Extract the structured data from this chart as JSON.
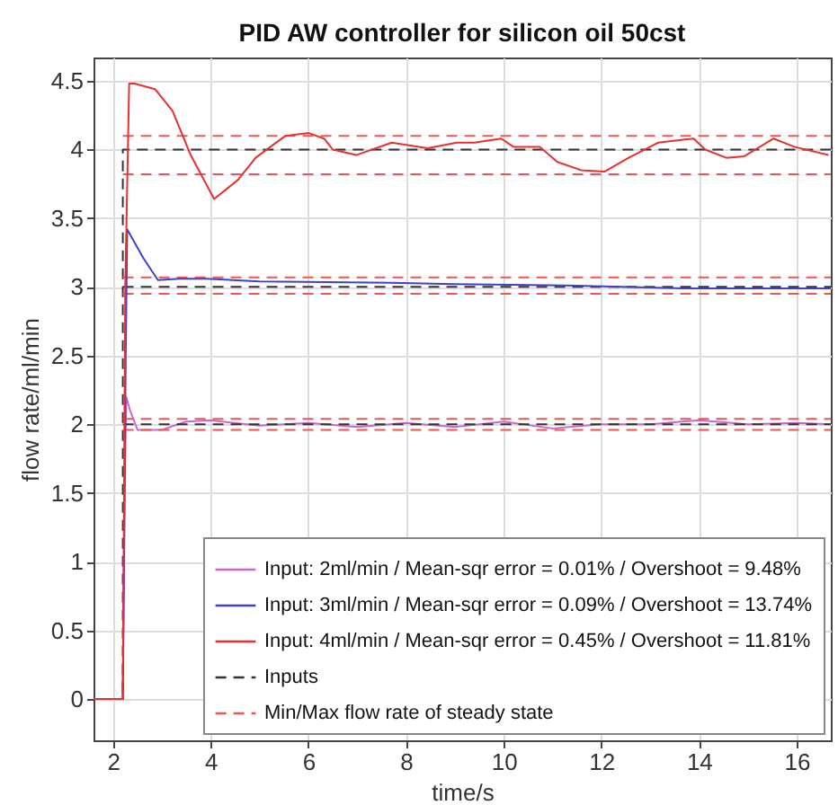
{
  "chart_data": {
    "type": "line",
    "title": "PID AW controller for silicon oil 50cst",
    "xlabel": "time/s",
    "ylabel": "flow rate/ml/min",
    "xlim": [
      1.6,
      16.7
    ],
    "ylim": [
      -0.3,
      4.67
    ],
    "xticks": [
      2,
      4,
      6,
      8,
      10,
      12,
      14,
      16
    ],
    "yticks": [
      0,
      0.5,
      1,
      1.5,
      2,
      2.5,
      3,
      3.5,
      4,
      4.5
    ],
    "grid": true,
    "legend": "bottom right",
    "marker": "none",
    "series": [
      {
        "name": "Input: 2ml/min / Mean-sqr error = 0.01% / Overshoot = 9.48%",
        "color": "#cc66cc",
        "line_style": "solid",
        "x": [
          1.6,
          2.2,
          2.24,
          2.27,
          2.35,
          2.5,
          3,
          3.5,
          4,
          5,
          6,
          7,
          8,
          9,
          10,
          11,
          12,
          13,
          14,
          15,
          16,
          16.7
        ],
        "values": [
          0,
          0,
          1.5,
          2.2,
          2.1,
          1.96,
          1.96,
          2.02,
          2.03,
          1.99,
          2.01,
          1.98,
          2.01,
          1.98,
          2.02,
          1.97,
          2,
          2,
          2.03,
          2,
          2.01,
          2
        ]
      },
      {
        "name": "Input: 3ml/min / Mean-sqr error = 0.09% / Overshoot = 13.74%",
        "color": "#4040c8",
        "line_style": "solid",
        "x": [
          1.6,
          2.2,
          2.26,
          2.29,
          2.62,
          2.92,
          3.35,
          3.9,
          5,
          7.7,
          9,
          11.3,
          13.7,
          15,
          16.7
        ],
        "values": [
          0,
          0,
          2.5,
          3.42,
          3.21,
          3.05,
          3.06,
          3.06,
          3.04,
          3.03,
          3.02,
          3.01,
          2.99,
          2.99,
          2.99
        ]
      },
      {
        "name": "Input: 4ml/min / Mean-sqr error = 0.45% / Overshoot = 11.81%",
        "color": "#e83030",
        "line_style": "solid",
        "x": [
          1.6,
          2.2,
          2.25,
          2.33,
          2.44,
          2.86,
          3.22,
          3.59,
          4.07,
          4.56,
          4.92,
          5.53,
          6.01,
          6.32,
          6.5,
          6.98,
          7.71,
          8.44,
          9.04,
          9.4,
          9.95,
          10.2,
          10.74,
          11.1,
          11.59,
          12.07,
          12.56,
          13.16,
          13.89,
          14.13,
          14.56,
          14.92,
          15.53,
          15.95,
          16.65
        ],
        "values": [
          0,
          0,
          3,
          4.48,
          4.48,
          4.44,
          4.28,
          3.96,
          3.64,
          3.78,
          3.94,
          4.1,
          4.12,
          4.08,
          4,
          3.96,
          4.05,
          4.01,
          4.05,
          4.05,
          4.08,
          4.02,
          4.02,
          3.91,
          3.85,
          3.84,
          3.94,
          4.05,
          4.08,
          4,
          3.94,
          3.95,
          4.08,
          4.02,
          3.96
        ]
      },
      {
        "name": "Inputs",
        "color": "#333333",
        "line_style": "dashed",
        "x": [
          1.6,
          2.2,
          2.2,
          16.7
        ],
        "values": [
          0,
          0,
          4,
          4
        ]
      },
      {
        "color": "#333333",
        "line_style": "dashed",
        "x": [
          2.2,
          16.7
        ],
        "values": [
          3,
          3
        ]
      },
      {
        "color": "#333333",
        "line_style": "dashed",
        "x": [
          2.2,
          16.7
        ],
        "values": [
          2,
          2
        ]
      },
      {
        "name": "Min/Max flow rate of  steady state",
        "color": "#ee5555",
        "line_style": "dashed",
        "x": [
          2.2,
          16.7
        ],
        "values": [
          4.1,
          4.1
        ]
      },
      {
        "color": "#ee5555",
        "line_style": "dashed",
        "x": [
          2.2,
          16.7
        ],
        "values": [
          3.82,
          3.82
        ]
      },
      {
        "color": "#ee5555",
        "line_style": "dashed",
        "x": [
          2.2,
          16.7
        ],
        "values": [
          3.07,
          3.07
        ]
      },
      {
        "color": "#ee5555",
        "line_style": "dashed",
        "x": [
          2.2,
          16.7
        ],
        "values": [
          2.95,
          2.95
        ]
      },
      {
        "color": "#ee5555",
        "line_style": "dashed",
        "x": [
          2.2,
          16.7
        ],
        "values": [
          2.04,
          2.04
        ]
      },
      {
        "color": "#ee5555",
        "line_style": "dashed",
        "x": [
          2.2,
          16.7
        ],
        "values": [
          1.96,
          1.96
        ]
      }
    ]
  }
}
